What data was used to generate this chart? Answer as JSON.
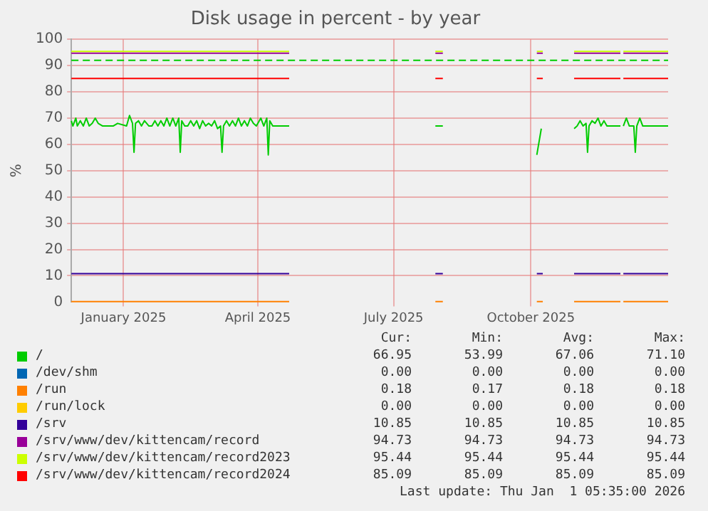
{
  "chart_data": {
    "type": "line",
    "title": "Disk usage in percent - by year",
    "ylabel": "%",
    "xlim": [
      "2024-11-27",
      "2026-01-01"
    ],
    "xticks": [
      {
        "value": "2025-01-01",
        "label": "January 2025"
      },
      {
        "value": "2025-04-01",
        "label": "April 2025"
      },
      {
        "value": "2025-07-01",
        "label": "July 2025"
      },
      {
        "value": "2025-10-01",
        "label": "October 2025"
      }
    ],
    "ylim": [
      0,
      100
    ],
    "yticks": [
      0,
      10,
      20,
      30,
      40,
      50,
      60,
      70,
      80,
      90,
      100
    ],
    "grid": true,
    "legend": "bottom",
    "marker": "none",
    "line_style": "solid",
    "ref_lines": [
      {
        "axis": "y",
        "value": 92,
        "color": "#00cc00",
        "line_style": "dashed"
      }
    ],
    "annotations": [
      "Cur:",
      "Min:",
      "Avg:",
      "Max:",
      "66.95",
      "53.99",
      "67.06",
      "71.10",
      "0.00",
      "0.00",
      "0.00",
      "0.00",
      "0.18",
      "0.17",
      "0.18",
      "0.18",
      "0.00",
      "0.00",
      "0.00",
      "0.00",
      "10.85",
      "10.85",
      "10.85",
      "10.85",
      "94.73",
      "94.73",
      "94.73",
      "94.73",
      "95.44",
      "95.44",
      "95.44",
      "95.44",
      "85.09",
      "85.09",
      "85.09",
      "85.09",
      "Last update: Thu Jan  1 05:35:00 2026"
    ],
    "series": [
      {
        "name": "/",
        "color": "#00cc00",
        "x": [
          "2024-11-27",
          "2024-11-28",
          "2024-11-30",
          "2024-12-01",
          "2024-12-03",
          "2024-12-05",
          "2024-12-07",
          "2024-12-09",
          "2024-12-11",
          "2024-12-13",
          "2024-12-15",
          "2024-12-18",
          "2024-12-25",
          "2024-12-28",
          "2025-01-03",
          "2025-01-05",
          "2025-01-07",
          "2025-01-08",
          "2025-01-09",
          "2025-01-11",
          "2025-01-13",
          "2025-01-15",
          "2025-01-18",
          "2025-01-20",
          "2025-01-22",
          "2025-01-24",
          "2025-01-26",
          "2025-01-28",
          "2025-01-30",
          "2025-02-01",
          "2025-02-03",
          "2025-02-05",
          "2025-02-07",
          "2025-02-08",
          "2025-02-09",
          "2025-02-11",
          "2025-02-13",
          "2025-02-15",
          "2025-02-17",
          "2025-02-19",
          "2025-02-21",
          "2025-02-23",
          "2025-02-25",
          "2025-02-27",
          "2025-03-01",
          "2025-03-03",
          "2025-03-05",
          "2025-03-07",
          "2025-03-08",
          "2025-03-09",
          "2025-03-11",
          "2025-03-13",
          "2025-03-15",
          "2025-03-17",
          "2025-03-19",
          "2025-03-21",
          "2025-03-23",
          "2025-03-25",
          "2025-03-27",
          "2025-03-29",
          "2025-03-31",
          "2025-04-03",
          "2025-04-05",
          "2025-04-07",
          "2025-04-08",
          "2025-04-09",
          "2025-04-11",
          "2025-04-22",
          "2025-05-01",
          "2025-07-29",
          "2025-08-03",
          "2025-08-10",
          "2025-10-05",
          "2025-10-08",
          "2025-10-15",
          "2025-10-30",
          "2025-11-01",
          "2025-11-03",
          "2025-11-05",
          "2025-11-07",
          "2025-11-08",
          "2025-11-09",
          "2025-11-11",
          "2025-11-13",
          "2025-11-15",
          "2025-11-17",
          "2025-11-19",
          "2025-11-21",
          "2025-11-30",
          "2025-12-01",
          "2025-12-02",
          "2025-12-04",
          "2025-12-06",
          "2025-12-09",
          "2025-12-10",
          "2025-12-11",
          "2025-12-13",
          "2025-12-15",
          "2026-01-01"
        ],
        "values": [
          69,
          67,
          70,
          67,
          69,
          67,
          70,
          67,
          68,
          70,
          68,
          67,
          67,
          68,
          67,
          71,
          68,
          57,
          68,
          69,
          67,
          69,
          67,
          67,
          69,
          67,
          69,
          67,
          70,
          67,
          70,
          67,
          70,
          57,
          69,
          67,
          67,
          69,
          67,
          69,
          66,
          69,
          67,
          68,
          67,
          69,
          66,
          67,
          57,
          67,
          69,
          67,
          69,
          67,
          70,
          67,
          69,
          67,
          70,
          68,
          67,
          70,
          67,
          70,
          56,
          69,
          67,
          67,
          null,
          67,
          67,
          null,
          56,
          66,
          null,
          66,
          67,
          69,
          67,
          68,
          57,
          67,
          69,
          68,
          70,
          67,
          69,
          67,
          67,
          null,
          67,
          70,
          67,
          67,
          57,
          67,
          70,
          67,
          67
        ]
      },
      {
        "name": "/dev/shm",
        "color": "#0066b3"
      },
      {
        "name": "/run",
        "color": "#ff8000",
        "x": [
          "2024-11-27",
          "2025-04-22",
          "2025-05-01",
          "2025-07-29",
          "2025-08-03",
          "2025-08-10",
          "2025-10-05",
          "2025-10-09",
          "2025-10-15",
          "2025-10-30",
          "2025-11-30",
          "2025-12-01",
          "2025-12-02",
          "2026-01-01"
        ],
        "values": [
          0.2,
          0.2,
          null,
          0.2,
          0.2,
          null,
          0.2,
          0.2,
          null,
          0.2,
          0.2,
          null,
          0.2,
          0.2
        ]
      },
      {
        "name": "/run/lock",
        "color": "#ffcc00"
      },
      {
        "name": "/srv",
        "color": "#330099",
        "x": [
          "2024-11-27",
          "2025-04-22",
          "2025-05-01",
          "2025-07-29",
          "2025-08-03",
          "2025-08-10",
          "2025-10-05",
          "2025-10-09",
          "2025-10-15",
          "2025-10-30",
          "2025-11-30",
          "2025-12-01",
          "2025-12-02",
          "2026-01-01"
        ],
        "values": [
          10.8,
          10.8,
          null,
          10.8,
          10.8,
          null,
          10.8,
          10.8,
          null,
          10.8,
          10.8,
          null,
          10.8,
          10.8
        ]
      },
      {
        "name": "/srv/www/dev/kittencam/record",
        "color": "#990099",
        "x": [
          "2024-11-27",
          "2025-04-22",
          "2025-05-01",
          "2025-07-29",
          "2025-08-03",
          "2025-08-10",
          "2025-10-05",
          "2025-10-09",
          "2025-10-15",
          "2025-10-30",
          "2025-11-30",
          "2025-12-01",
          "2025-12-02",
          "2026-01-01"
        ],
        "values": [
          94.7,
          94.7,
          null,
          94.7,
          94.7,
          null,
          94.7,
          94.7,
          null,
          94.7,
          94.7,
          null,
          94.7,
          94.7
        ]
      },
      {
        "name": "/srv/www/dev/kittencam/record2023",
        "color": "#ccff00",
        "x": [
          "2024-11-27",
          "2025-04-22",
          "2025-05-01",
          "2025-07-29",
          "2025-08-03",
          "2025-08-10",
          "2025-10-05",
          "2025-10-09",
          "2025-10-15",
          "2025-10-30",
          "2025-11-30",
          "2025-12-01",
          "2025-12-02",
          "2026-01-01"
        ],
        "values": [
          95.4,
          95.4,
          null,
          95.4,
          95.4,
          null,
          95.4,
          95.4,
          null,
          95.4,
          95.4,
          null,
          95.4,
          95.4
        ]
      },
      {
        "name": "/srv/www/dev/kittencam/record2024",
        "color": "#ff0000",
        "x": [
          "2024-11-27",
          "2025-04-22",
          "2025-05-01",
          "2025-07-29",
          "2025-08-03",
          "2025-08-10",
          "2025-10-05",
          "2025-10-09",
          "2025-10-15",
          "2025-10-30",
          "2025-11-30",
          "2025-12-01",
          "2025-12-02",
          "2026-01-01"
        ],
        "values": [
          85.1,
          85.1,
          null,
          85.1,
          85.1,
          null,
          85.1,
          85.1,
          null,
          85.1,
          85.1,
          null,
          85.1,
          85.1
        ]
      }
    ]
  }
}
